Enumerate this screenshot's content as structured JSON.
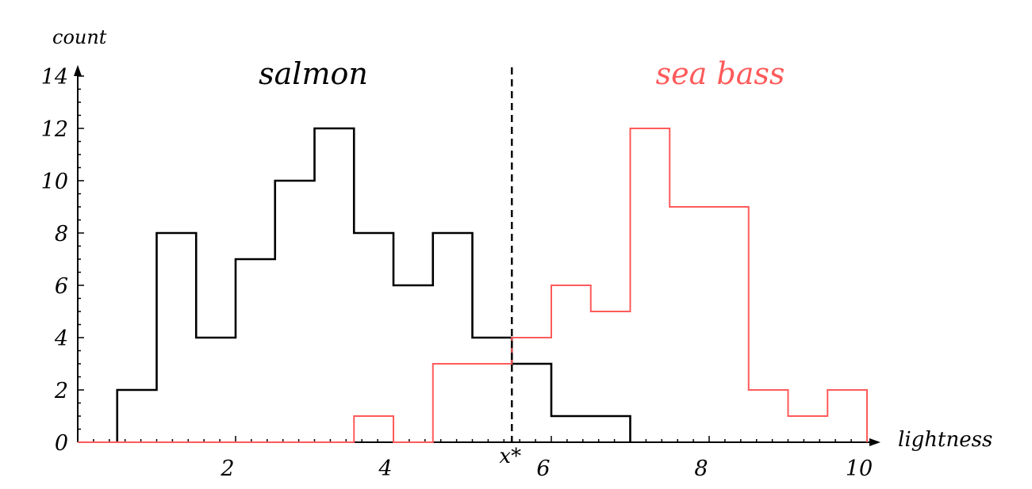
{
  "chart_data": {
    "type": "line",
    "step": true,
    "xlabel": "lightness",
    "ylabel": "count",
    "xlim": [
      0,
      10
    ],
    "ylim": [
      0,
      14
    ],
    "x_ticks": [
      2,
      4,
      6,
      8,
      10
    ],
    "y_ticks": [
      0,
      2,
      4,
      6,
      8,
      10,
      12,
      14
    ],
    "grid": false,
    "threshold": {
      "label": "x*",
      "x": 5.5
    },
    "series": [
      {
        "name": "salmon",
        "color": "#000000",
        "edges": [
          0.5,
          1.0,
          1.5,
          2.0,
          2.5,
          3.0,
          3.5,
          4.0,
          4.5,
          5.0,
          5.5,
          6.0,
          6.5,
          7.0
        ],
        "values": [
          2,
          8,
          4,
          7,
          10,
          12,
          8,
          6,
          8,
          4,
          3,
          1,
          1
        ]
      },
      {
        "name": "sea bass",
        "color": "#ff5a5a",
        "edges": [
          0.0,
          3.5,
          4.0,
          4.5,
          5.5,
          6.0,
          6.5,
          7.0,
          7.5,
          8.0,
          8.5,
          9.0,
          9.5,
          10.0
        ],
        "values": [
          0,
          1,
          0,
          3,
          4,
          6,
          5,
          12,
          9,
          9,
          2,
          1,
          2
        ]
      }
    ]
  }
}
